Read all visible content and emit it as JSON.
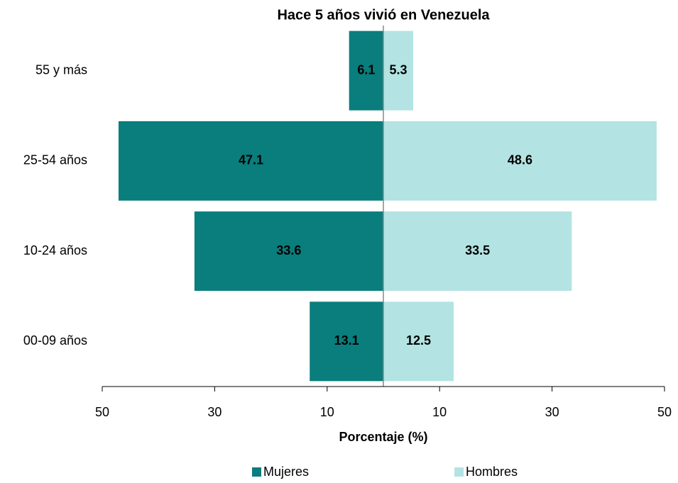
{
  "chart_data": {
    "type": "pyramid",
    "title": "Hace 5 años vivió en Venezuela",
    "categories": [
      "55 y más",
      "25-54 años",
      "10-24 años",
      "00-09 años"
    ],
    "series": [
      {
        "name": "Mujeres",
        "color": "#0a7d7d",
        "values": [
          6.1,
          47.1,
          33.6,
          13.1
        ]
      },
      {
        "name": "Hombres",
        "color": "#b3e3e3",
        "values": [
          5.3,
          48.6,
          33.5,
          12.5
        ]
      }
    ],
    "xlim": [
      -50,
      50
    ],
    "xticks": [
      {
        "value": -50,
        "label": "50"
      },
      {
        "value": -30,
        "label": "30"
      },
      {
        "value": -10,
        "label": "10"
      },
      10,
      30,
      50
    ],
    "xlabel": "Porcentaje (%)"
  }
}
